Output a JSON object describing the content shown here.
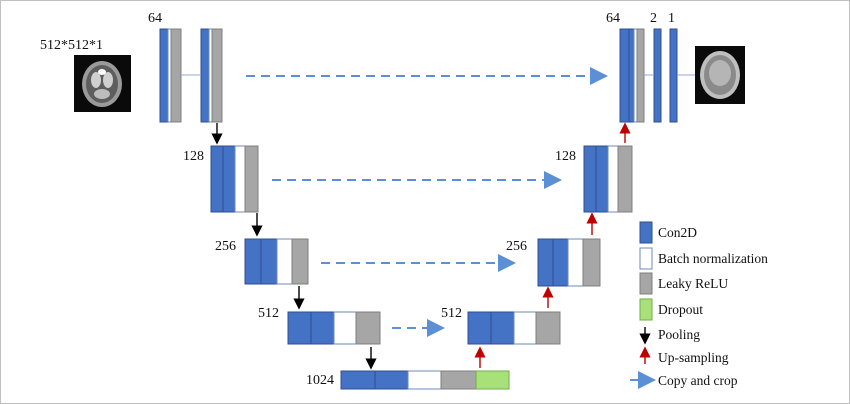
{
  "input_size_label": "512*512*1",
  "level_labels": {
    "enc": [
      "64",
      "128",
      "256",
      "512",
      "1024"
    ],
    "dec": [
      "64",
      "128",
      "256",
      "512"
    ],
    "out2": "2",
    "out1": "1"
  },
  "legend": {
    "conv": "Con2D",
    "batch_norm": "Batch normalization",
    "leaky_relu": "Leaky ReLU",
    "dropout": "Dropout",
    "pooling": "Pooling",
    "upsampling": "Up-sampling",
    "copy_crop": "Copy and crop"
  },
  "colors": {
    "conv": "#4472c4",
    "batch_norm": "#ffffff",
    "leaky_relu": "#a6a6a6",
    "dropout": "#a8e07a",
    "pooling_arrow": "#000000",
    "upsampling_arrow": "#c00000",
    "copy_arrow": "#5b8fd6"
  }
}
